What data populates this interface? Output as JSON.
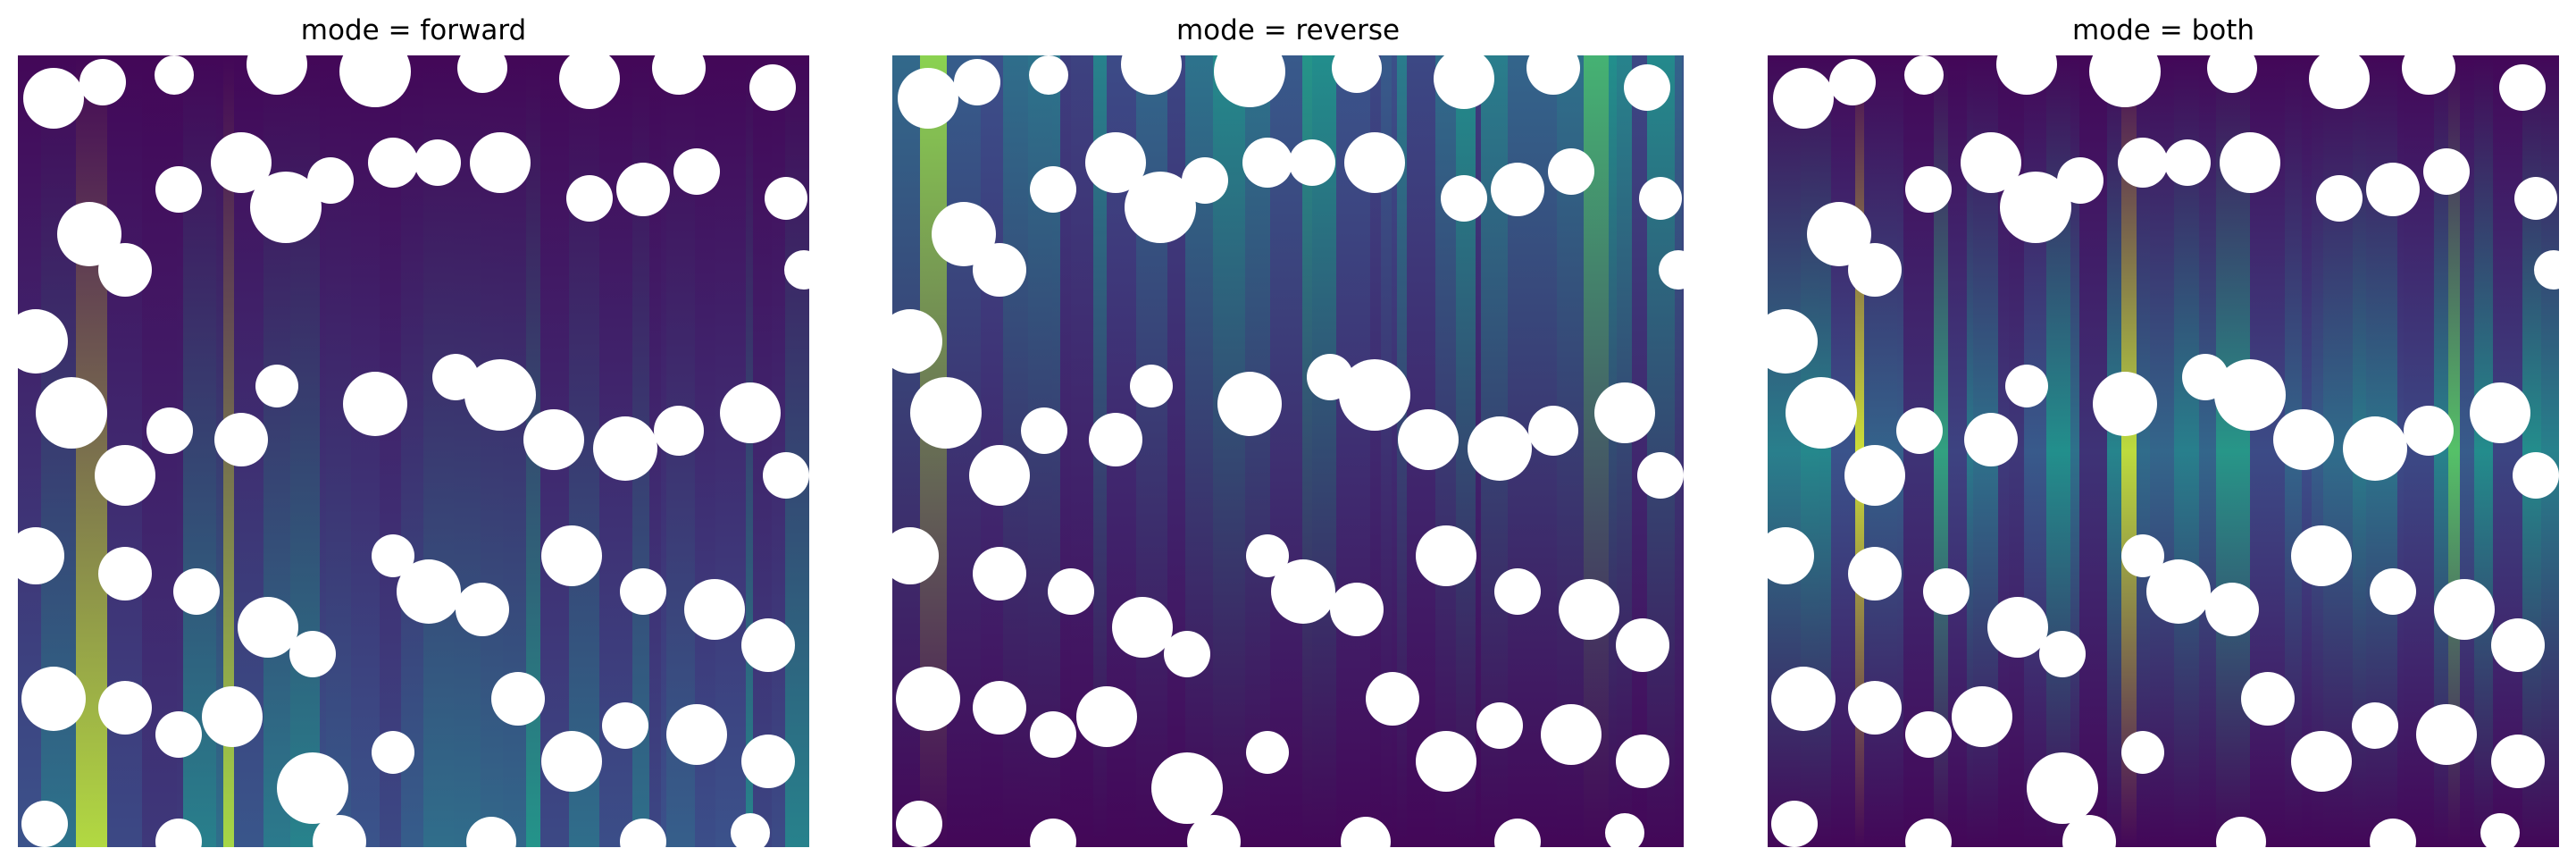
{
  "figure": {
    "panels": [
      {
        "title": "mode = forward",
        "mode": "forward"
      },
      {
        "title": "mode = reverse",
        "mode": "reverse"
      },
      {
        "title": "mode = both",
        "mode": "both"
      }
    ],
    "colormap": "viridis",
    "mask_color": "#ffffff"
  }
}
